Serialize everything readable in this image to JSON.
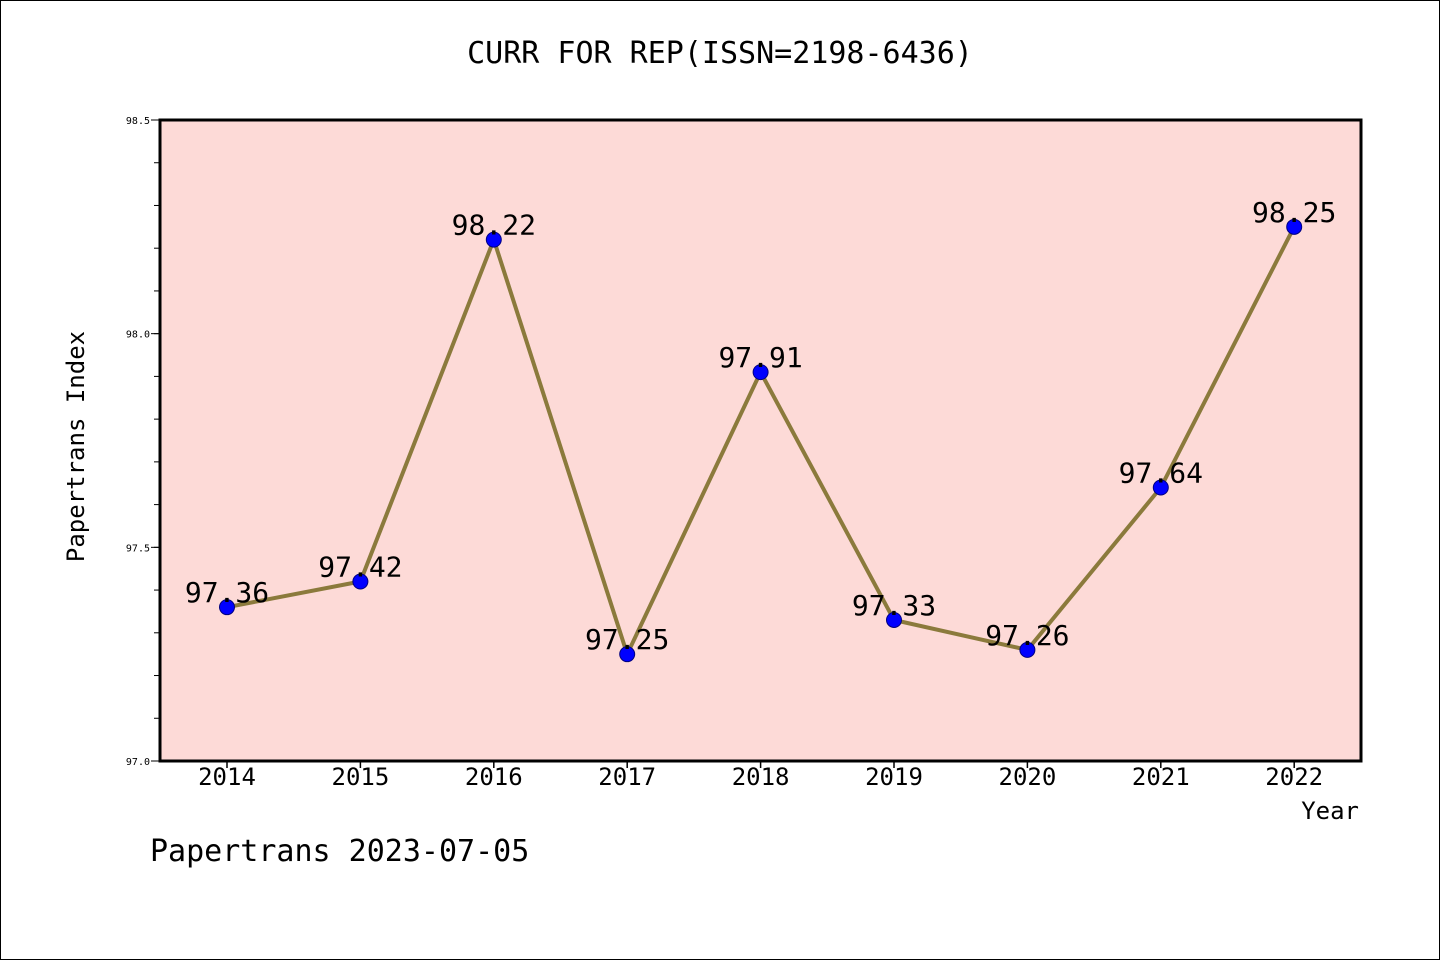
{
  "chart_data": {
    "type": "line",
    "title": "CURR FOR REP(ISSN=2198-6436)",
    "xlabel": "Year",
    "ylabel": "Papertrans Index",
    "categories": [
      "2014",
      "2015",
      "2016",
      "2017",
      "2018",
      "2019",
      "2020",
      "2021",
      "2022"
    ],
    "series": [
      {
        "values": [
          97.36,
          97.42,
          98.22,
          97.25,
          97.91,
          97.33,
          97.26,
          97.64,
          98.25
        ]
      }
    ],
    "data_labels": [
      "97.36",
      "97.42",
      "98.22",
      "97.25",
      "97.91",
      "97.33",
      "97.26",
      "97.64",
      "98.25"
    ],
    "ylim": [
      97.0,
      98.5
    ],
    "y_ticks": [
      "97.0",
      "97.5",
      "98.0",
      "98.5"
    ],
    "y_tick_values": [
      97.0,
      97.5,
      98.0,
      98.5
    ],
    "y_minor_step": 0.1,
    "grid": false,
    "legend": "none",
    "colors": {
      "plot_background": "#fddad7",
      "line": "#8b7a3c",
      "marker_fill": "#0000ff",
      "marker_edge": "#000080",
      "axis": "#000000"
    }
  },
  "footer": {
    "credit": "Papertrans 2023-07-05"
  }
}
